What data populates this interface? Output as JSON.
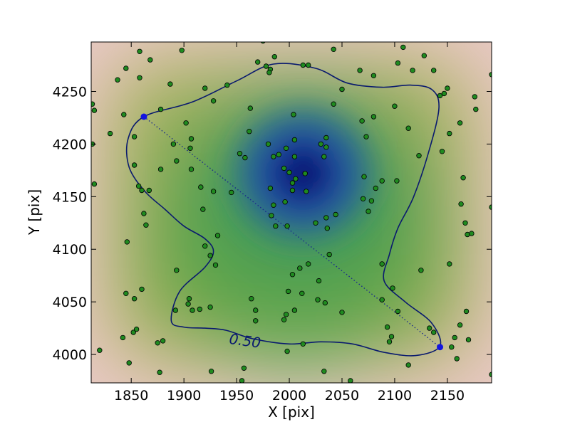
{
  "chart_data": {
    "type": "scatter",
    "xlabel": "X [pix]",
    "ylabel": "Y [pix]",
    "xlim": [
      1812,
      2192
    ],
    "ylim": [
      3973,
      4297
    ],
    "x_ticks": [
      1850,
      1900,
      1950,
      2000,
      2050,
      2100,
      2150
    ],
    "y_ticks": [
      4000,
      4050,
      4100,
      4150,
      4200,
      4250
    ],
    "x_tick_labels": [
      "1850",
      "1900",
      "1950",
      "2000",
      "2050",
      "2100",
      "2150"
    ],
    "y_tick_labels": [
      "4000",
      "4050",
      "4100",
      "4150",
      "4200",
      "4250"
    ],
    "grid": false,
    "background": "smooth density map, dark navy near (2013, 4172) through blue, green, yellow-tan to pale pink at the edges",
    "density_peak": [
      2013,
      4172
    ],
    "contour": {
      "level_label": "0.50",
      "level_label_position": [
        1958,
        4013
      ],
      "color": "#0a1a6e",
      "points": [
        [
          1862,
          4226
        ],
        [
          1908,
          4240
        ],
        [
          1950,
          4260
        ],
        [
          1985,
          4276
        ],
        [
          2025,
          4272
        ],
        [
          2055,
          4258
        ],
        [
          2088,
          4254
        ],
        [
          2115,
          4256
        ],
        [
          2135,
          4252
        ],
        [
          2142,
          4235
        ],
        [
          2133,
          4195
        ],
        [
          2118,
          4150
        ],
        [
          2103,
          4120
        ],
        [
          2095,
          4095
        ],
        [
          2090,
          4070
        ],
        [
          2110,
          4050
        ],
        [
          2135,
          4030
        ],
        [
          2143,
          4008
        ],
        [
          2120,
          3999
        ],
        [
          2090,
          4002
        ],
        [
          2060,
          4010
        ],
        [
          2030,
          4012
        ],
        [
          2000,
          4010
        ],
        [
          1965,
          4015
        ],
        [
          1940,
          4023
        ],
        [
          1920,
          4025
        ],
        [
          1900,
          4026
        ],
        [
          1888,
          4032
        ],
        [
          1896,
          4060
        ],
        [
          1920,
          4083
        ],
        [
          1928,
          4098
        ],
        [
          1920,
          4110
        ],
        [
          1900,
          4122
        ],
        [
          1882,
          4138
        ],
        [
          1863,
          4155
        ],
        [
          1848,
          4178
        ],
        [
          1847,
          4205
        ]
      ]
    },
    "diagonal": {
      "from": [
        1862,
        4226
      ],
      "to": [
        2143,
        4007
      ],
      "endpoint_color": "#1414e0",
      "line_color": "#1a2a8c"
    },
    "marker_color": "#1f8a1f",
    "points": [
      [
        1813,
        4238
      ],
      [
        1815,
        4232
      ],
      [
        1813,
        4200
      ],
      [
        1815,
        4162
      ],
      [
        1820,
        4004
      ],
      [
        1830,
        4210
      ],
      [
        1837,
        4261
      ],
      [
        1845,
        4272
      ],
      [
        1843,
        4228
      ],
      [
        1846,
        4107
      ],
      [
        1845,
        4058
      ],
      [
        1848,
        3992
      ],
      [
        1842,
        4016
      ],
      [
        1852,
        4021
      ],
      [
        1855,
        4024
      ],
      [
        1853,
        4053
      ],
      [
        1858,
        4288
      ],
      [
        1858,
        4263
      ],
      [
        1853,
        4207
      ],
      [
        1853,
        4180
      ],
      [
        1857,
        4160
      ],
      [
        1860,
        4156
      ],
      [
        1862,
        4134
      ],
      [
        1864,
        4123
      ],
      [
        1867,
        4156
      ],
      [
        1868,
        4280
      ],
      [
        1860,
        4062
      ],
      [
        1875,
        4011
      ],
      [
        1880,
        4013
      ],
      [
        1877,
        3983
      ],
      [
        1878,
        4233
      ],
      [
        1878,
        4176
      ],
      [
        1887,
        4257
      ],
      [
        1890,
        4200
      ],
      [
        1893,
        4184
      ],
      [
        1893,
        4080
      ],
      [
        1892,
        4042
      ],
      [
        1898,
        4289
      ],
      [
        1902,
        4220
      ],
      [
        1907,
        4205
      ],
      [
        1906,
        4196
      ],
      [
        1907,
        4176
      ],
      [
        1905,
        4053
      ],
      [
        1904,
        4048
      ],
      [
        1908,
        4042
      ],
      [
        1915,
        4043
      ],
      [
        1916,
        4159
      ],
      [
        1918,
        4138
      ],
      [
        1920,
        4253
      ],
      [
        1920,
        4103
      ],
      [
        1925,
        4094
      ],
      [
        1925,
        4045
      ],
      [
        1926,
        3984
      ],
      [
        1928,
        4155
      ],
      [
        1928,
        4241
      ],
      [
        1930,
        4085
      ],
      [
        1932,
        4113
      ],
      [
        1941,
        4256
      ],
      [
        1945,
        4154
      ],
      [
        1953,
        4191
      ],
      [
        1958,
        4187
      ],
      [
        1963,
        4234
      ],
      [
        1962,
        4212
      ],
      [
        1957,
        3987
      ],
      [
        1955,
        3975
      ],
      [
        1964,
        4053
      ],
      [
        1968,
        4042
      ],
      [
        1968,
        4032
      ],
      [
        1970,
        4278
      ],
      [
        1975,
        4298
      ],
      [
        1978,
        4274
      ],
      [
        1982,
        4271
      ],
      [
        1981,
        4268
      ],
      [
        1986,
        4283
      ],
      [
        1980,
        4200
      ],
      [
        1985,
        4188
      ],
      [
        1982,
        4158
      ],
      [
        1983,
        4132
      ],
      [
        1985,
        4142
      ],
      [
        1987,
        4122
      ],
      [
        1990,
        4190
      ],
      [
        1995,
        4177
      ],
      [
        1997,
        4196
      ],
      [
        1996,
        4145
      ],
      [
        1998,
        4122
      ],
      [
        1997,
        4038
      ],
      [
        1995,
        4033
      ],
      [
        1999,
        4060
      ],
      [
        1998,
        4003
      ],
      [
        2000,
        4173
      ],
      [
        2003,
        4163
      ],
      [
        2003,
        4156
      ],
      [
        2004,
        4228
      ],
      [
        2005,
        4204
      ],
      [
        2005,
        4188
      ],
      [
        2006,
        4167
      ],
      [
        2003,
        4076
      ],
      [
        2005,
        4042
      ],
      [
        2010,
        4082
      ],
      [
        2012,
        4058
      ],
      [
        2013,
        4010
      ],
      [
        2013,
        4275
      ],
      [
        2015,
        4172
      ],
      [
        2016,
        4155
      ],
      [
        2018,
        4086
      ],
      [
        2018,
        4275
      ],
      [
        2025,
        4125
      ],
      [
        2028,
        4070
      ],
      [
        2027,
        4052
      ],
      [
        2030,
        4200
      ],
      [
        2033,
        4188
      ],
      [
        2035,
        4206
      ],
      [
        2035,
        4197
      ],
      [
        2035,
        4130
      ],
      [
        2036,
        4120
      ],
      [
        2038,
        4095
      ],
      [
        2034,
        4049
      ],
      [
        2033,
        3984
      ],
      [
        2042,
        4238
      ],
      [
        2044,
        4133
      ],
      [
        2042,
        4290
      ],
      [
        2050,
        4252
      ],
      [
        2050,
        4040
      ],
      [
        2058,
        3975
      ],
      [
        2067,
        4270
      ],
      [
        2069,
        4222
      ],
      [
        2071,
        4169
      ],
      [
        2070,
        4148
      ],
      [
        2073,
        4207
      ],
      [
        2075,
        4136
      ],
      [
        2078,
        4146
      ],
      [
        2080,
        4265
      ],
      [
        2080,
        4226
      ],
      [
        2082,
        4158
      ],
      [
        2088,
        4165
      ],
      [
        2088,
        4052
      ],
      [
        2088,
        4086
      ],
      [
        2093,
        4026
      ],
      [
        2097,
        4017
      ],
      [
        2095,
        4012
      ],
      [
        2098,
        4063
      ],
      [
        2100,
        4236
      ],
      [
        2102,
        4165
      ],
      [
        2103,
        4277
      ],
      [
        2103,
        4041
      ],
      [
        2108,
        4292
      ],
      [
        2113,
        4215
      ],
      [
        2113,
        3990
      ],
      [
        2117,
        4270
      ],
      [
        2123,
        4189
      ],
      [
        2125,
        4080
      ],
      [
        2128,
        4284
      ],
      [
        2133,
        4025
      ],
      [
        2137,
        4021
      ],
      [
        2137,
        4270
      ],
      [
        2143,
        4246
      ],
      [
        2145,
        4193
      ],
      [
        2147,
        4248
      ],
      [
        2150,
        4253
      ],
      [
        2152,
        4210
      ],
      [
        2152,
        4086
      ],
      [
        2154,
        4007
      ],
      [
        2157,
        4016
      ],
      [
        2159,
        3996
      ],
      [
        2162,
        4220
      ],
      [
        2162,
        4028
      ],
      [
        2165,
        4168
      ],
      [
        2163,
        4143
      ],
      [
        2167,
        4125
      ],
      [
        2169,
        4114
      ],
      [
        2173,
        4115
      ],
      [
        2176,
        4245
      ],
      [
        2177,
        4233
      ],
      [
        2168,
        4041
      ],
      [
        2170,
        4014
      ],
      [
        2192,
        4266
      ],
      [
        2192,
        4140
      ],
      [
        2192,
        3981
      ]
    ]
  }
}
